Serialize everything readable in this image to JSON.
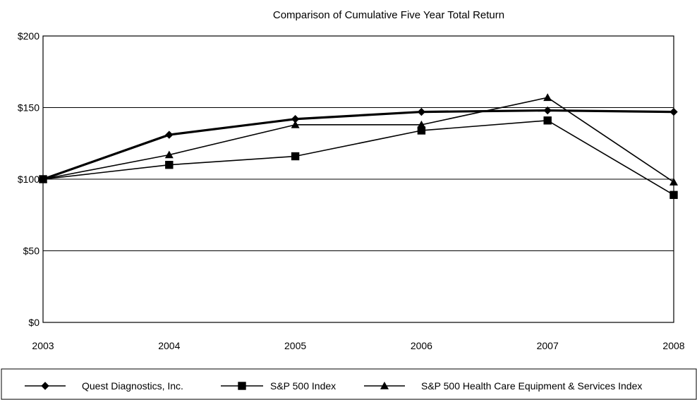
{
  "chart_data": {
    "type": "line",
    "title": "Comparison of Cumulative Five Year Total Return",
    "xlabel": "",
    "ylabel": "",
    "categories": [
      "2003",
      "2004",
      "2005",
      "2006",
      "2007",
      "2008"
    ],
    "ylim": [
      0,
      200
    ],
    "y_ticks": [
      0,
      50,
      100,
      150,
      200
    ],
    "y_tick_labels": [
      "$0",
      "$50",
      "$100",
      "$150",
      "$200"
    ],
    "grid": "horizontal",
    "legend_position": "bottom",
    "series": [
      {
        "name": "Quest Diagnostics, Inc.",
        "values": [
          100,
          131,
          142,
          147,
          148,
          147
        ],
        "marker": "diamond",
        "color": "#000000",
        "bold": true
      },
      {
        "name": "S&P 500 Index",
        "values": [
          100,
          110,
          116,
          134,
          141,
          89
        ],
        "marker": "square",
        "color": "#000000",
        "bold": false
      },
      {
        "name": "S&P 500 Health Care Equipment & Services Index",
        "values": [
          100,
          117,
          138,
          138,
          157,
          98
        ],
        "marker": "triangle",
        "color": "#000000",
        "bold": false
      }
    ]
  }
}
